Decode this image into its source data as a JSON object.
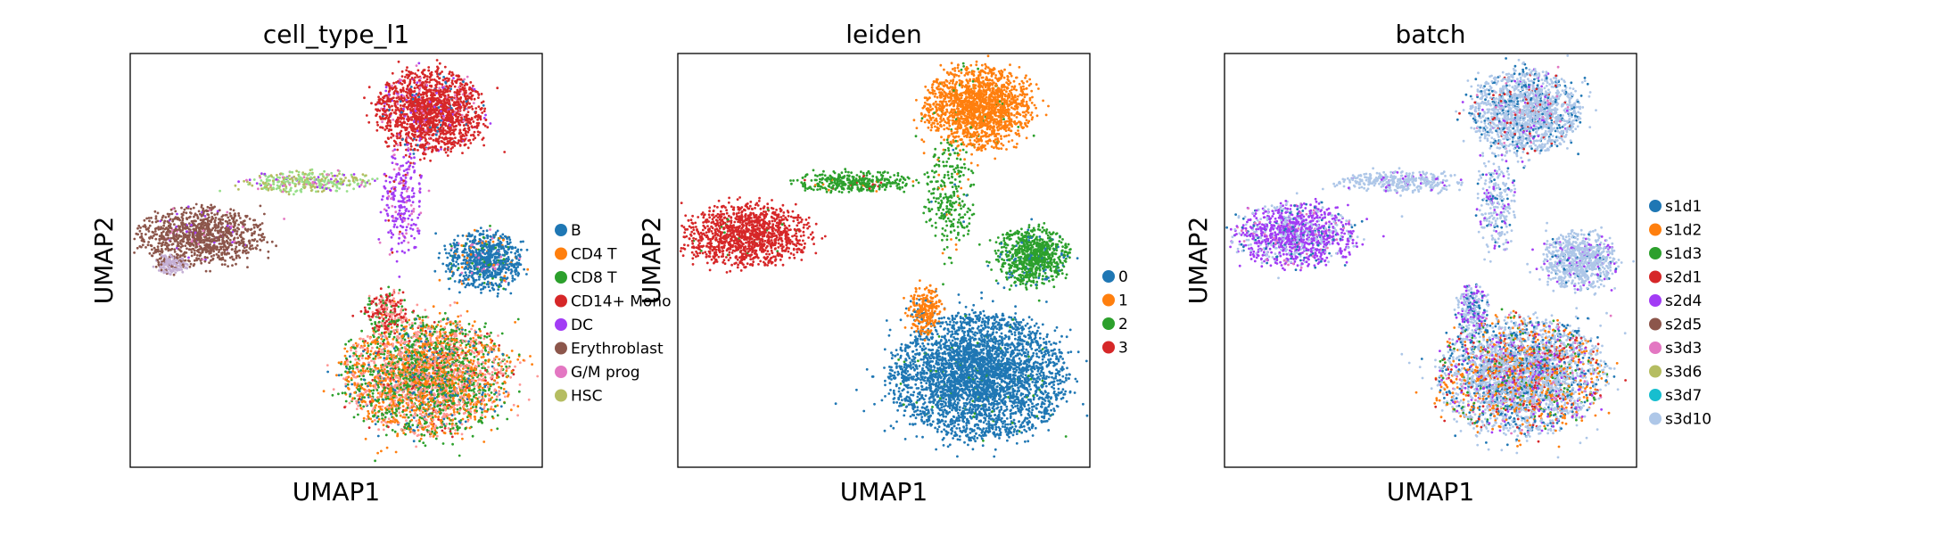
{
  "figure": {
    "background": "#ffffff"
  },
  "chart_data": [
    {
      "type": "scatter",
      "title": "cell_type_l1",
      "xlabel": "UMAP1",
      "ylabel": "UMAP2",
      "grid": false,
      "ticks": "none",
      "legend_placement": "right-outside",
      "colors": [
        "#1f77b4",
        "#ff7f0e",
        "#2ca02c",
        "#d62728",
        "#a23cf5",
        "#8c564b",
        "#e377c2",
        "#b5bd61",
        "#17becf",
        "#aec7e8",
        "#ff9896",
        "#c5b0d5",
        "#98df8a"
      ],
      "legend": [
        "B",
        "CD4 T",
        "CD8 T",
        "CD14+ Mono",
        "DC",
        "Erythroblast",
        "G/M prog",
        "HSC"
      ],
      "regions": [
        {
          "label": "CD14+ Mono",
          "cx": 0.73,
          "cy": 0.86,
          "rx": 0.13,
          "ry": 0.1,
          "n": 1700,
          "mix": {
            "3": 0.88,
            "4": 0.04,
            "6": 0.05,
            "0": 0.03
          }
        },
        {
          "label": "DC",
          "cx": 0.66,
          "cy": 0.64,
          "rx": 0.05,
          "ry": 0.14,
          "n": 260,
          "mix": {
            "4": 0.75,
            "6": 0.2,
            "3": 0.05
          }
        },
        {
          "label": "B",
          "cx": 0.86,
          "cy": 0.5,
          "rx": 0.09,
          "ry": 0.07,
          "n": 800,
          "mix": {
            "0": 0.85,
            "2": 0.05,
            "6": 0.05,
            "1": 0.05
          }
        },
        {
          "label": "Erythroblast",
          "cx": 0.17,
          "cy": 0.56,
          "rx": 0.15,
          "ry": 0.07,
          "n": 1050,
          "mix": {
            "5": 0.94,
            "6": 0.03,
            "4": 0.03
          }
        },
        {
          "label": "Erythroblast-tip",
          "cx": 0.1,
          "cy": 0.49,
          "rx": 0.04,
          "ry": 0.025,
          "n": 160,
          "mix": {
            "11": 0.8,
            "5": 0.2
          }
        },
        {
          "label": "HSC",
          "cx": 0.43,
          "cy": 0.69,
          "rx": 0.15,
          "ry": 0.025,
          "n": 360,
          "mix": {
            "12": 0.5,
            "7": 0.3,
            "6": 0.1,
            "4": 0.1
          }
        },
        {
          "label": "T-lymph",
          "cx": 0.72,
          "cy": 0.22,
          "rx": 0.2,
          "ry": 0.14,
          "n": 3400,
          "mix": {
            "10": 0.3,
            "2": 0.3,
            "1": 0.3,
            "3": 0.04,
            "0": 0.06
          }
        },
        {
          "label": "T-upper",
          "cx": 0.62,
          "cy": 0.38,
          "rx": 0.05,
          "ry": 0.05,
          "n": 220,
          "mix": {
            "3": 0.5,
            "10": 0.3,
            "2": 0.2
          }
        }
      ]
    },
    {
      "type": "scatter",
      "title": "leiden",
      "xlabel": "UMAP1",
      "ylabel": "UMAP2",
      "grid": false,
      "ticks": "none",
      "legend_placement": "right-outside",
      "colors": [
        "#1f77b4",
        "#ff7f0e",
        "#2ca02c",
        "#d62728"
      ],
      "legend": [
        "0",
        "1",
        "2",
        "3"
      ],
      "regions": [
        {
          "label": "1",
          "cx": 0.73,
          "cy": 0.87,
          "rx": 0.13,
          "ry": 0.1,
          "n": 1700,
          "mix": {
            "1": 0.98,
            "2": 0.02
          }
        },
        {
          "label": "2a",
          "cx": 0.66,
          "cy": 0.65,
          "rx": 0.06,
          "ry": 0.14,
          "n": 280,
          "mix": {
            "2": 0.92,
            "1": 0.04,
            "0": 0.04
          }
        },
        {
          "label": "2b",
          "cx": 0.86,
          "cy": 0.51,
          "rx": 0.09,
          "ry": 0.07,
          "n": 800,
          "mix": {
            "2": 0.92,
            "0": 0.08
          }
        },
        {
          "label": "3",
          "cx": 0.17,
          "cy": 0.56,
          "rx": 0.15,
          "ry": 0.075,
          "n": 1200,
          "mix": {
            "3": 0.98,
            "2": 0.02
          }
        },
        {
          "label": "2c",
          "cx": 0.43,
          "cy": 0.69,
          "rx": 0.15,
          "ry": 0.025,
          "n": 360,
          "mix": {
            "2": 0.95,
            "3": 0.03,
            "1": 0.02
          }
        },
        {
          "label": "0",
          "cx": 0.73,
          "cy": 0.22,
          "rx": 0.21,
          "ry": 0.15,
          "n": 3600,
          "mix": {
            "0": 0.98,
            "2": 0.02
          }
        },
        {
          "label": "1b",
          "cx": 0.6,
          "cy": 0.38,
          "rx": 0.04,
          "ry": 0.06,
          "n": 260,
          "mix": {
            "1": 0.93,
            "0": 0.07
          }
        }
      ]
    },
    {
      "type": "scatter",
      "title": "batch",
      "xlabel": "UMAP1",
      "ylabel": "UMAP2",
      "grid": false,
      "ticks": "none",
      "legend_placement": "right-outside",
      "colors": [
        "#1f77b4",
        "#ff7f0e",
        "#2ca02c",
        "#d62728",
        "#a23cf5",
        "#8c564b",
        "#e377c2",
        "#b5bd61",
        "#17becf",
        "#aec7e8"
      ],
      "legend": [
        "s1d1",
        "s1d2",
        "s1d3",
        "s2d1",
        "s2d4",
        "s2d5",
        "s3d3",
        "s3d6",
        "s3d7",
        "s3d10"
      ],
      "regions": [
        {
          "label": "top",
          "cx": 0.73,
          "cy": 0.86,
          "rx": 0.13,
          "ry": 0.1,
          "n": 1700,
          "mix": {
            "9": 0.75,
            "0": 0.15,
            "4": 0.03,
            "6": 0.03,
            "3": 0.04
          }
        },
        {
          "label": "stem",
          "cx": 0.66,
          "cy": 0.64,
          "rx": 0.05,
          "ry": 0.14,
          "n": 260,
          "mix": {
            "9": 0.75,
            "4": 0.15,
            "0": 0.1
          }
        },
        {
          "label": "right",
          "cx": 0.86,
          "cy": 0.5,
          "rx": 0.09,
          "ry": 0.07,
          "n": 800,
          "mix": {
            "9": 0.85,
            "4": 0.1,
            "0": 0.05
          }
        },
        {
          "label": "left",
          "cx": 0.17,
          "cy": 0.56,
          "rx": 0.15,
          "ry": 0.075,
          "n": 1200,
          "mix": {
            "4": 0.6,
            "9": 0.25,
            "0": 0.1,
            "6": 0.05
          }
        },
        {
          "label": "bridge",
          "cx": 0.43,
          "cy": 0.69,
          "rx": 0.15,
          "ry": 0.025,
          "n": 360,
          "mix": {
            "9": 0.9,
            "4": 0.1
          }
        },
        {
          "label": "bottom",
          "cx": 0.72,
          "cy": 0.22,
          "rx": 0.2,
          "ry": 0.14,
          "n": 3500,
          "mix": {
            "9": 0.5,
            "1": 0.15,
            "0": 0.15,
            "4": 0.06,
            "3": 0.06,
            "2": 0.04,
            "6": 0.04
          }
        },
        {
          "label": "bottom-upper",
          "cx": 0.6,
          "cy": 0.38,
          "rx": 0.04,
          "ry": 0.06,
          "n": 240,
          "mix": {
            "9": 0.6,
            "4": 0.25,
            "0": 0.15
          }
        }
      ]
    }
  ]
}
